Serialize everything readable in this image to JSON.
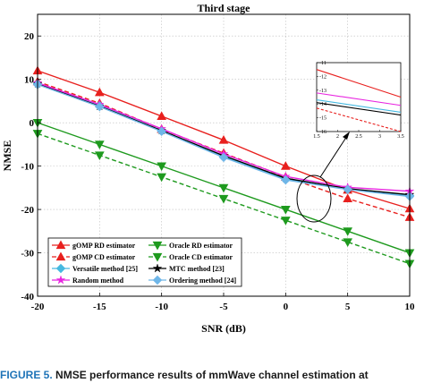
{
  "caption": {
    "figure_label": "FIGURE 5.",
    "text": "NMSE performance results of mmWave channel estimation at"
  },
  "chart_data": [
    {
      "type": "line",
      "title": "Third stage",
      "xlabel": "SNR (dB)",
      "ylabel": "NMSE",
      "xlim": [
        -20,
        10
      ],
      "ylim": [
        -40,
        25
      ],
      "xticks": [
        -20,
        -15,
        -10,
        -5,
        0,
        5,
        10
      ],
      "yticks": [
        -40,
        -30,
        -20,
        -10,
        0,
        10,
        20
      ],
      "xtick_labels": [
        "-20",
        "-15",
        "-10",
        "-5",
        "0",
        "5",
        "10"
      ],
      "ytick_labels": [
        "-40",
        "-30",
        "-20",
        "-10",
        "0",
        "10",
        "20"
      ],
      "grid": true,
      "legend_position": "bottom-left",
      "x": [
        -20,
        -15,
        -10,
        -5,
        0,
        5,
        10
      ],
      "series": [
        {
          "name": "gOMP RD estimator",
          "color": "#e8201e",
          "dash": "solid",
          "marker": "triangle-up",
          "values": [
            12,
            7,
            1.5,
            -4,
            -10,
            -15.5,
            -19.8
          ]
        },
        {
          "name": "Oracle RD estimator",
          "color": "#1e9a1e",
          "dash": "solid",
          "marker": "triangle-down",
          "values": [
            0,
            -5,
            -10,
            -15,
            -20,
            -25,
            -30
          ]
        },
        {
          "name": "gOMP CD estimator",
          "color": "#e8201e",
          "dash": "dashed",
          "marker": "triangle-up",
          "values": [
            9.5,
            4.5,
            -1.5,
            -7,
            -12.5,
            -17.5,
            -21.8
          ]
        },
        {
          "name": "Oracle CD estimator",
          "color": "#1e9a1e",
          "dash": "dashed",
          "marker": "triangle-down",
          "values": [
            -2.5,
            -7.5,
            -12.5,
            -17.5,
            -22.5,
            -27.5,
            -32.5
          ]
        },
        {
          "name": "Versatile method [25]",
          "color": "#46b9e0",
          "dash": "solid",
          "marker": "diamond",
          "values": [
            9,
            4,
            -1.8,
            -7.8,
            -13,
            -15.3,
            -16.8
          ]
        },
        {
          "name": "MTC method [23]",
          "color": "#000000",
          "dash": "solid",
          "marker": "star",
          "values": [
            9,
            3.8,
            -1.8,
            -7.6,
            -12.8,
            -15.2,
            -16.6
          ]
        },
        {
          "name": "Random method",
          "color": "#e825e0",
          "dash": "solid",
          "marker": "star",
          "values": [
            9.2,
            4.2,
            -1.4,
            -7.2,
            -12.4,
            -14.9,
            -15.8
          ]
        },
        {
          "name": "Ordering method [24]",
          "color": "#6fb6e8",
          "dash": "solid",
          "marker": "diamond",
          "values": [
            8.8,
            3.7,
            -2,
            -8,
            -13.2,
            -15.4,
            -17
          ]
        }
      ]
    },
    {
      "type": "line",
      "role": "inset-zoom",
      "xlim": [
        1.5,
        3.5
      ],
      "ylim": [
        -16,
        -11
      ],
      "xticks": [
        1.5,
        2,
        2.5,
        3,
        3.5
      ],
      "yticks": [
        -16,
        -15,
        -14,
        -13,
        -12,
        -11
      ],
      "xtick_labels": [
        "1.5",
        "2",
        "2.5",
        "3",
        "3.5"
      ],
      "ytick_labels": [
        "-16",
        "-15",
        "-14",
        "-13",
        "-12",
        "-11"
      ],
      "grid": false,
      "x": [
        1.5,
        3.5
      ],
      "series": [
        {
          "color": "#e8201e",
          "dash": "solid",
          "values": [
            -11.5,
            -13.5
          ]
        },
        {
          "color": "#e825e0",
          "dash": "solid",
          "values": [
            -13.2,
            -14.1
          ]
        },
        {
          "color": "#46b9e0",
          "dash": "solid",
          "values": [
            -13.7,
            -14.6
          ]
        },
        {
          "color": "#000000",
          "dash": "solid",
          "values": [
            -13.9,
            -14.8
          ]
        },
        {
          "color": "#e8201e",
          "dash": "dashed",
          "values": [
            -14.3,
            -16
          ]
        }
      ]
    }
  ]
}
